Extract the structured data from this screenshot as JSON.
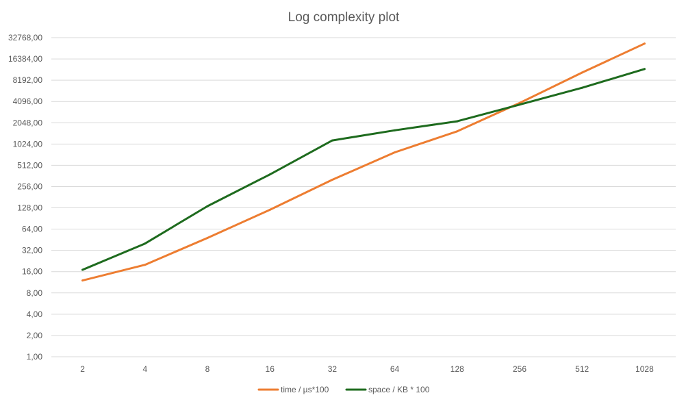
{
  "chart_data": {
    "type": "line",
    "title": "Log complexity plot",
    "xlabel": "",
    "ylabel": "",
    "y_scale": "log2",
    "ylim": [
      1,
      32768
    ],
    "grid": true,
    "legend_position": "bottom",
    "categories": [
      "2",
      "4",
      "8",
      "16",
      "32",
      "64",
      "128",
      "256",
      "512",
      "1028"
    ],
    "y_ticks": [
      "1,00",
      "2,00",
      "4,00",
      "8,00",
      "16,00",
      "32,00",
      "64,00",
      "128,00",
      "256,00",
      "512,00",
      "1024,00",
      "2048,00",
      "4096,00",
      "8192,00",
      "16384,00",
      "32768,00"
    ],
    "series": [
      {
        "name": "time / µs*100",
        "color": "#ED7D31",
        "values": [
          12,
          20,
          48,
          120,
          320,
          780,
          1550,
          3900,
          10500,
          27000
        ]
      },
      {
        "name": "space / KB * 100",
        "color": "#1E6B1E",
        "values": [
          17,
          40,
          135,
          380,
          1150,
          1600,
          2150,
          3700,
          6400,
          11800
        ]
      }
    ]
  }
}
